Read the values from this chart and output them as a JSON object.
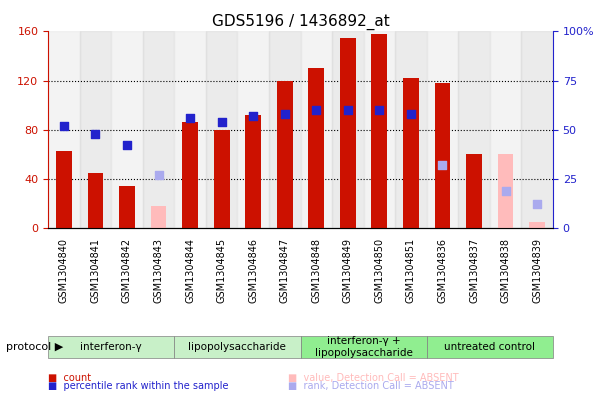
{
  "title": "GDS5196 / 1436892_at",
  "samples": [
    "GSM1304840",
    "GSM1304841",
    "GSM1304842",
    "GSM1304843",
    "GSM1304844",
    "GSM1304845",
    "GSM1304846",
    "GSM1304847",
    "GSM1304848",
    "GSM1304849",
    "GSM1304850",
    "GSM1304851",
    "GSM1304836",
    "GSM1304837",
    "GSM1304838",
    "GSM1304839"
  ],
  "count_values": [
    63,
    45,
    34,
    null,
    86,
    80,
    92,
    120,
    130,
    155,
    158,
    122,
    118,
    60,
    null,
    null
  ],
  "count_absent": [
    null,
    null,
    null,
    18,
    null,
    null,
    null,
    null,
    null,
    null,
    null,
    null,
    null,
    null,
    60,
    5
  ],
  "rank_values": [
    52,
    48,
    42,
    null,
    56,
    54,
    57,
    58,
    60,
    60,
    60,
    58,
    null,
    null,
    null,
    null
  ],
  "rank_absent": [
    null,
    null,
    null,
    27,
    null,
    null,
    null,
    null,
    null,
    null,
    null,
    null,
    32,
    null,
    19,
    12
  ],
  "groups": [
    {
      "label": "interferon-γ",
      "start": 0,
      "end": 4,
      "color": "#c8f0c8"
    },
    {
      "label": "lipopolysaccharide",
      "start": 4,
      "end": 8,
      "color": "#c8f0c8"
    },
    {
      "label": "interferon-γ +\nlipopolysaccharide",
      "start": 8,
      "end": 12,
      "color": "#90ee90"
    },
    {
      "label": "untreated control",
      "start": 12,
      "end": 16,
      "color": "#90ee90"
    }
  ],
  "left_ylim": [
    0,
    160
  ],
  "right_ylim": [
    0,
    100
  ],
  "left_yticks": [
    0,
    40,
    80,
    120,
    160
  ],
  "right_yticks": [
    0,
    25,
    50,
    75,
    100
  ],
  "right_yticklabels": [
    "0",
    "25",
    "50",
    "75",
    "100%"
  ],
  "bar_color": "#cc1100",
  "bar_absent_color": "#ffbbbb",
  "rank_color": "#2222cc",
  "rank_absent_color": "#aaaaee",
  "bar_width": 0.5,
  "rank_marker_size": 30
}
